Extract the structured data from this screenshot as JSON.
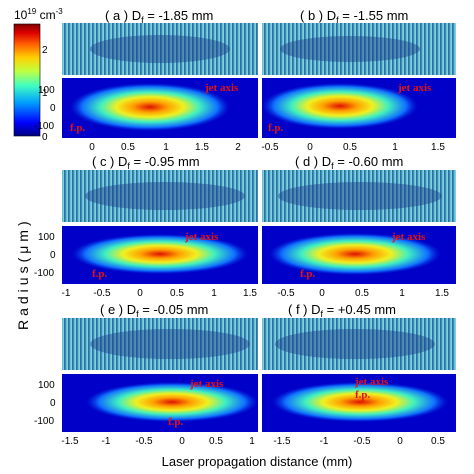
{
  "colorbar": {
    "unit_exp": "10",
    "unit_sup": "19",
    "unit_rest": " cm",
    "unit_sup2": "-3",
    "ticks": [
      "2",
      "1",
      "0"
    ],
    "colors": [
      "#000080",
      "#0000ff",
      "#00a0ff",
      "#40ffc0",
      "#c0ff40",
      "#ffd000",
      "#ff6000",
      "#e00000",
      "#800000"
    ]
  },
  "axes": {
    "ylabel": "Radius(μm)",
    "xlabel": "Laser propagation distance (mm)",
    "yticks": [
      "100",
      "0",
      "-100"
    ]
  },
  "annotations": {
    "jet_axis": "jet axis",
    "focal_point": "f.p."
  },
  "panels": [
    {
      "label": "( a ) D",
      "sub": "f",
      "value": " = -1.85 mm",
      "xticks": [
        "0",
        "0.5",
        "1",
        "1.5",
        "2"
      ]
    },
    {
      "label": "( b ) D",
      "sub": "f",
      "value": " = -1.55 mm",
      "xticks": [
        "-0.5",
        "0",
        "0.5",
        "1",
        "1.5"
      ]
    },
    {
      "label": "( c ) D",
      "sub": "f",
      "value": " = -0.95 mm",
      "xticks": [
        "-1",
        "-0.5",
        "0",
        "0.5",
        "1",
        "1.5"
      ]
    },
    {
      "label": "( d ) D",
      "sub": "f",
      "value": " = -0.60 mm",
      "xticks": [
        "-0.5",
        "0",
        "0.5",
        "1",
        "1.5"
      ]
    },
    {
      "label": "( e ) D",
      "sub": "f",
      "value": " = -0.05 mm",
      "xticks": [
        "-1.5",
        "-1",
        "-0.5",
        "0",
        "0.5",
        "1"
      ]
    },
    {
      "label": "( f ) D",
      "sub": "f",
      "value": " = +0.45 mm",
      "xticks": [
        "-1.5",
        "-1",
        "-0.5",
        "0",
        "0.5"
      ]
    }
  ]
}
